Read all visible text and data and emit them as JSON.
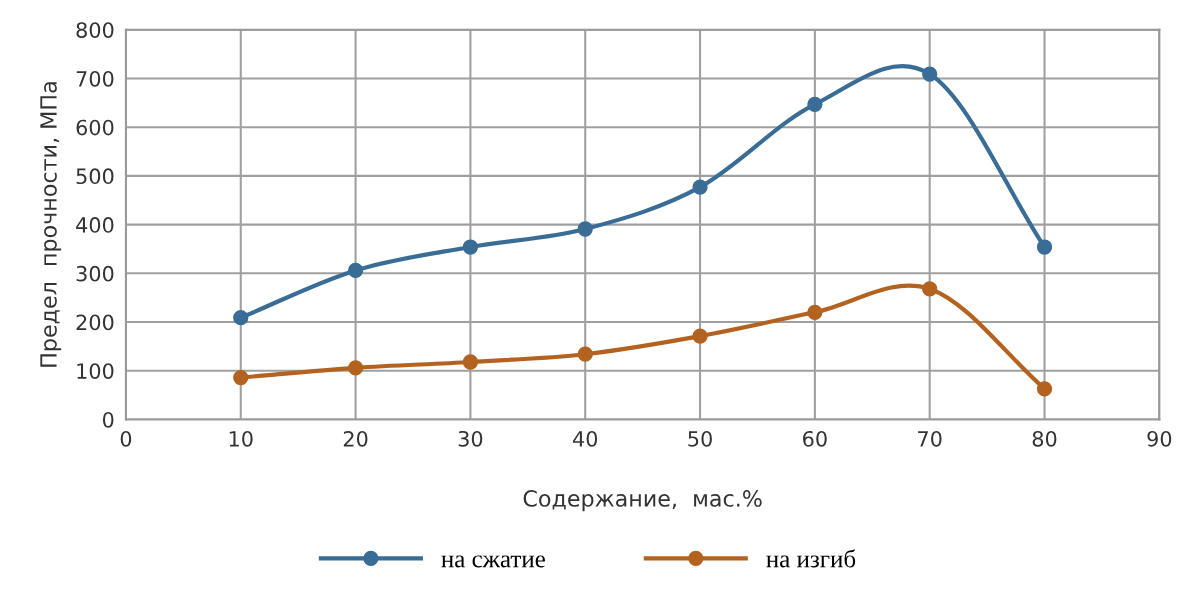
{
  "chart_data": {
    "type": "line",
    "xlabel": "Содержание,  мас.%",
    "ylabel": "Предел  прочности, МПа",
    "x": [
      10,
      20,
      30,
      40,
      50,
      60,
      70,
      80
    ],
    "series": [
      {
        "name": "на сжатие",
        "color": "#3a6d96",
        "values": [
          209,
          306,
          354,
          391,
          477,
          647,
          709,
          354
        ]
      },
      {
        "name": "на изгиб",
        "color": "#b3631f",
        "values": [
          86,
          106,
          118,
          134,
          171,
          220,
          268,
          63
        ]
      }
    ],
    "xlim": [
      0,
      90
    ],
    "xticks": [
      0,
      10,
      20,
      30,
      40,
      50,
      60,
      70,
      80,
      90
    ],
    "ylim": [
      0,
      800
    ],
    "yticks": [
      0,
      100,
      200,
      300,
      400,
      500,
      600,
      700,
      800
    ],
    "grid": true,
    "legend": "bottom",
    "marker": "circle",
    "line_style": "solid"
  }
}
